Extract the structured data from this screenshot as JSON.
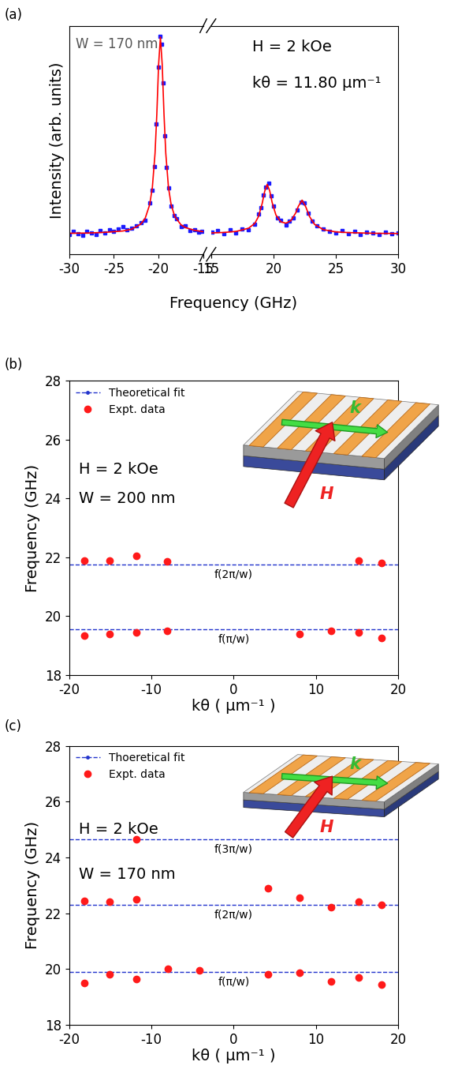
{
  "chart_data": [
    {
      "type": "scatter",
      "panel_label": "(a)",
      "xlabel": "Frequency (GHz)",
      "ylabel": "Intensity (arb. units)",
      "ylim": [
        0,
        100
      ],
      "tick_labels": "x",
      "segments": [
        {
          "xlim": [
            -30,
            -15
          ],
          "xticks": [
            -30,
            -25,
            -20,
            -15
          ],
          "annotations": [
            "W = 170 nm"
          ]
        },
        {
          "xlim": [
            15,
            30
          ],
          "xticks": [
            15,
            20,
            25,
            30
          ],
          "annotations": [
            "H = 2 kOe",
            "kθ = 11.80 µm⁻¹"
          ]
        }
      ],
      "series": [
        {
          "type": "scatter",
          "color": "#1a1aff",
          "marker": "square",
          "x": [
            -30,
            -29.5,
            -29,
            -28.5,
            -28,
            -27.5,
            -27,
            -26.5,
            -26,
            -25.5,
            -25,
            -24.5,
            -24,
            -23.5,
            -23,
            -22.5,
            -22,
            -21.5,
            -21,
            -20.75,
            -20.5,
            -20.25,
            -20.0,
            -19.85,
            -19.7,
            -19.5,
            -19.3,
            -19.1,
            -18.9,
            -18.6,
            -18.3,
            -18.0,
            -17.5,
            -17.0,
            -16.5,
            -16.0,
            -15.5,
            -15.2,
            15.1,
            15.5,
            16,
            16.5,
            17,
            17.5,
            18,
            18.5,
            18.8,
            19.0,
            19.2,
            19.4,
            19.6,
            19.8,
            20.0,
            20.3,
            20.6,
            21.0,
            21.3,
            21.6,
            21.9,
            22.2,
            22.5,
            22.8,
            23.1,
            23.5,
            24.0,
            24.5,
            25.0,
            25.5,
            26,
            26.5,
            27,
            27.5,
            28,
            28.5,
            29,
            29.5,
            30
          ],
          "values": [
            8.5,
            10.2,
            9.0,
            8.2,
            10.0,
            9.5,
            8.8,
            10.4,
            9.2,
            10.8,
            9.9,
            11.2,
            12.0,
            10.6,
            11.5,
            12.4,
            13.8,
            15.0,
            22.5,
            28.0,
            38.5,
            57.0,
            82.0,
            95.5,
            92.0,
            75.0,
            52.0,
            38.0,
            29.0,
            21.0,
            17.0,
            15.5,
            12.0,
            12.3,
            10.5,
            10.9,
            9.6,
            10.1,
            9.8,
            10.4,
            9.0,
            10.6,
            9.5,
            11.2,
            10.8,
            13.0,
            17.5,
            20.5,
            26.0,
            29.5,
            31.0,
            25.5,
            21.0,
            16.0,
            14.8,
            12.8,
            14.5,
            16.0,
            19.5,
            23.0,
            22.5,
            18.0,
            14.5,
            12.5,
            11.0,
            10.2,
            9.3,
            10.5,
            9.0,
            10.0,
            8.8,
            9.8,
            9.4,
            8.6,
            9.7,
            9.1,
            9.5
          ]
        },
        {
          "type": "line",
          "color": "#ff0000",
          "line_style": "solid",
          "x": [
            -30,
            -28,
            -26,
            -24,
            -23,
            -22,
            -21.5,
            -21,
            -20.7,
            -20.4,
            -20.2,
            -20.0,
            -19.8,
            -19.6,
            -19.4,
            -19.2,
            -18.9,
            -18.6,
            -18.2,
            -17.5,
            -17,
            -16,
            -15,
            15,
            16,
            17,
            18,
            18.5,
            18.8,
            19.1,
            19.3,
            19.5,
            19.7,
            19.9,
            20.2,
            20.6,
            21.0,
            21.4,
            21.8,
            22.0,
            22.3,
            22.6,
            22.9,
            23.3,
            24,
            25,
            26,
            28,
            30
          ],
          "values": [
            9.2,
            9.3,
            9.6,
            10.2,
            11.0,
            13.2,
            15.8,
            21.7,
            29.3,
            44.2,
            61.4,
            83.1,
            95.0,
            83.1,
            61.4,
            44.2,
            29.3,
            21.7,
            16.6,
            12.9,
            11.7,
            10.5,
            9.9,
            9.35,
            9.55,
            10.0,
            11.4,
            13.5,
            16.5,
            22.3,
            27.6,
            30.6,
            27.8,
            22.6,
            17.2,
            14.2,
            13.6,
            14.7,
            18.2,
            21.0,
            23.7,
            20.7,
            16.5,
            13.1,
            10.8,
            9.8,
            9.5,
            9.2,
            9.1
          ]
        }
      ]
    },
    {
      "type": "scatter",
      "panel_label": "(b)",
      "xlabel": "kθ ( µm⁻¹ )",
      "ylabel": "Frequency (GHz)",
      "xlim": [
        -20,
        20
      ],
      "xticks": [
        -20,
        -10,
        0,
        10,
        20
      ],
      "ylim": [
        18,
        28
      ],
      "yticks": [
        18,
        20,
        22,
        24,
        26,
        28
      ],
      "legend": "upper left",
      "annotations": [
        "H = 2 kOe",
        "W = 200 nm"
      ],
      "inset_labels": {
        "wavevector": "k",
        "field": "H"
      },
      "series": [
        {
          "name": "Theoretical fit",
          "type": "line",
          "color": "#2233cc",
          "line_style": "dashed",
          "marker": "point",
          "levels": [
            {
              "value": 21.75,
              "label": "f(2π/w)"
            },
            {
              "value": 19.55,
              "label": "f(π/w)"
            }
          ]
        },
        {
          "name": "Expt. data",
          "type": "scatter",
          "color": "#ff1a1a",
          "marker": "circle",
          "x": [
            -18.2,
            -15.1,
            -11.8,
            -8.1,
            15.2,
            18.0,
            -18.2,
            -15.1,
            -11.8,
            -8.1,
            8.0,
            11.9,
            15.2,
            18.0
          ],
          "values": [
            21.9,
            21.9,
            22.05,
            21.85,
            21.9,
            21.8,
            19.35,
            19.4,
            19.45,
            19.5,
            19.4,
            19.5,
            19.45,
            19.25
          ]
        }
      ]
    },
    {
      "type": "scatter",
      "panel_label": "(c)",
      "xlabel": "kθ ( µm⁻¹ )",
      "ylabel": "Frequency (GHz)",
      "xlim": [
        -20,
        20
      ],
      "xticks": [
        -20,
        -10,
        0,
        10,
        20
      ],
      "ylim": [
        18,
        28
      ],
      "yticks": [
        18,
        20,
        22,
        24,
        26,
        28
      ],
      "legend": "upper left",
      "annotations": [
        "H = 2 kOe",
        "W = 170 nm"
      ],
      "inset_labels": {
        "wavevector": "k",
        "field": "H"
      },
      "series": [
        {
          "name": "Thoeretical fit",
          "type": "line",
          "color": "#2233cc",
          "line_style": "dashed",
          "marker": "point",
          "levels": [
            {
              "value": 24.65,
              "label": "f(3π/w)"
            },
            {
              "value": 22.3,
              "label": "f(2π/w)"
            },
            {
              "value": 19.9,
              "label": "f(π/w)"
            }
          ]
        },
        {
          "name": "Expt. data",
          "type": "scatter",
          "color": "#ff1a1a",
          "marker": "circle",
          "x": [
            -11.8,
            -18.2,
            -15.1,
            -11.8,
            4.2,
            8.0,
            11.9,
            15.2,
            18.0,
            -18.2,
            -15.1,
            -11.8,
            -8.0,
            -4.2,
            4.2,
            8.0,
            11.9,
            15.2,
            18.0
          ],
          "values": [
            24.65,
            22.45,
            22.4,
            22.5,
            22.9,
            22.55,
            22.2,
            22.4,
            22.3,
            19.5,
            19.8,
            19.65,
            20.0,
            19.95,
            19.8,
            19.85,
            19.55,
            19.7,
            19.45
          ]
        }
      ]
    }
  ]
}
